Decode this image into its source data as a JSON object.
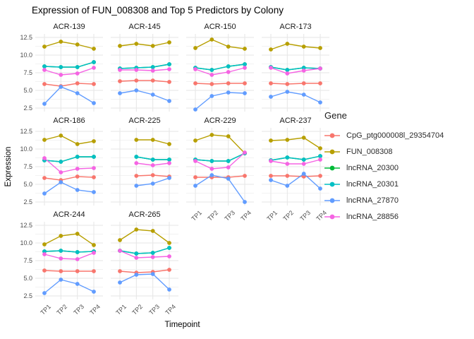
{
  "title": "Expression of FUN_008308 and Top 5 Predictors by Colony",
  "axes": {
    "x_label": "Timepoint",
    "y_label": "Expression",
    "x_ticks": [
      "TP1",
      "TP2",
      "TP3",
      "TP4"
    ],
    "y_ticks": [
      "2.5",
      "5.0",
      "7.5",
      "10.0",
      "12.5"
    ]
  },
  "legend": {
    "title": "Gene",
    "entries": [
      {
        "label": "CpG_ptg000008l_29354704",
        "color": "#F8766D"
      },
      {
        "label": "FUN_008308",
        "color": "#B79F00"
      },
      {
        "label": "lncRNA_20300",
        "color": "#00BA38"
      },
      {
        "label": "lncRNA_20301",
        "color": "#00BFC4"
      },
      {
        "label": "lncRNA_27870",
        "color": "#619CFF"
      },
      {
        "label": "lncRNA_28856",
        "color": "#F564E3"
      }
    ]
  },
  "chart_data": {
    "type": "line",
    "x": [
      "TP1",
      "TP2",
      "TP3",
      "TP4"
    ],
    "ylim": [
      2.5,
      12.5
    ],
    "y_major_ticks": [
      2.5,
      5.0,
      7.5,
      10.0,
      12.5
    ],
    "y_minor_ticks": [
      3.75,
      6.25,
      8.75,
      11.25
    ],
    "grid": "on",
    "legend_position": "right",
    "series_order": [
      "CpG_ptg000008l_29354704",
      "FUN_008308",
      "lncRNA_20300",
      "lncRNA_20301",
      "lncRNA_27870",
      "lncRNA_28856"
    ],
    "series_colors": {
      "CpG_ptg000008l_29354704": "#F8766D",
      "FUN_008308": "#B79F00",
      "lncRNA_20300": "#00BA38",
      "lncRNA_20301": "#00BFC4",
      "lncRNA_27870": "#619CFF",
      "lncRNA_28856": "#F564E3"
    },
    "facets": [
      {
        "colony": "ACR-139",
        "series": {
          "CpG_ptg000008l_29354704": [
            5.9,
            5.6,
            6.0,
            5.9
          ],
          "FUN_008308": [
            11.2,
            11.9,
            11.5,
            10.9
          ],
          "lncRNA_20300": [
            8.4,
            8.3,
            8.3,
            9.0
          ],
          "lncRNA_20301": [
            8.4,
            8.3,
            8.3,
            9.0
          ],
          "lncRNA_27870": [
            3.1,
            5.5,
            4.6,
            3.2
          ],
          "lncRNA_28856": [
            7.9,
            7.2,
            7.4,
            8.2
          ]
        }
      },
      {
        "colony": "ACR-145",
        "series": {
          "CpG_ptg000008l_29354704": [
            6.3,
            6.4,
            6.4,
            6.2
          ],
          "FUN_008308": [
            11.3,
            11.6,
            11.3,
            11.8
          ],
          "lncRNA_20300": [
            8.1,
            8.2,
            8.3,
            8.7
          ],
          "lncRNA_20301": [
            8.1,
            8.2,
            8.3,
            8.7
          ],
          "lncRNA_27870": [
            4.6,
            5.0,
            4.4,
            3.5
          ],
          "lncRNA_28856": [
            7.9,
            7.9,
            7.8,
            8.0
          ]
        }
      },
      {
        "colony": "ACR-150",
        "series": {
          "CpG_ptg000008l_29354704": [
            6.0,
            5.9,
            6.0,
            6.0
          ],
          "FUN_008308": [
            11.0,
            12.2,
            11.2,
            10.9
          ],
          "lncRNA_20300": [
            8.2,
            7.9,
            8.4,
            8.7
          ],
          "lncRNA_20301": [
            8.2,
            7.9,
            8.4,
            8.7
          ],
          "lncRNA_27870": [
            2.3,
            4.2,
            4.7,
            4.6
          ],
          "lncRNA_28856": [
            8.0,
            7.2,
            7.6,
            8.2
          ]
        }
      },
      {
        "colony": "ACR-173",
        "series": {
          "CpG_ptg000008l_29354704": [
            6.0,
            5.9,
            6.0,
            6.0
          ],
          "FUN_008308": [
            10.8,
            11.6,
            11.2,
            11.0
          ],
          "lncRNA_20300": [
            8.3,
            7.9,
            8.2,
            8.1
          ],
          "lncRNA_20301": [
            8.3,
            7.9,
            8.2,
            8.1
          ],
          "lncRNA_27870": [
            4.1,
            4.8,
            4.4,
            3.3
          ],
          "lncRNA_28856": [
            8.2,
            7.4,
            7.8,
            8.1
          ]
        }
      },
      {
        "colony": "ACR-186",
        "series": {
          "CpG_ptg000008l_29354704": [
            5.9,
            5.6,
            6.1,
            6.0
          ],
          "FUN_008308": [
            11.3,
            11.9,
            10.7,
            11.1
          ],
          "lncRNA_20300": [
            8.4,
            8.2,
            8.9,
            8.9
          ],
          "lncRNA_20301": [
            8.4,
            8.2,
            8.9,
            8.9
          ],
          "lncRNA_27870": [
            3.7,
            5.3,
            4.2,
            3.9
          ],
          "lncRNA_28856": [
            8.7,
            6.7,
            7.2,
            7.3
          ]
        }
      },
      {
        "colony": "ACR-225",
        "series": {
          "CpG_ptg000008l_29354704": [
            null,
            6.2,
            6.3,
            6.1
          ],
          "FUN_008308": [
            null,
            11.3,
            11.3,
            10.7
          ],
          "lncRNA_20300": [
            null,
            8.9,
            8.5,
            8.5
          ],
          "lncRNA_20301": [
            null,
            8.9,
            8.5,
            8.5
          ],
          "lncRNA_27870": [
            null,
            4.8,
            5.1,
            5.9
          ],
          "lncRNA_28856": [
            null,
            8.0,
            7.7,
            8.0
          ]
        }
      },
      {
        "colony": "ACR-229",
        "series": {
          "CpG_ptg000008l_29354704": [
            6.0,
            6.0,
            6.0,
            6.2
          ],
          "FUN_008308": [
            11.2,
            12.0,
            11.8,
            9.4
          ],
          "lncRNA_20300": [
            8.5,
            8.3,
            8.3,
            9.4
          ],
          "lncRNA_20301": [
            8.5,
            8.3,
            8.3,
            9.4
          ],
          "lncRNA_27870": [
            4.8,
            6.3,
            5.8,
            2.5
          ],
          "lncRNA_28856": [
            8.3,
            7.2,
            7.4,
            9.5
          ]
        }
      },
      {
        "colony": "ACR-237",
        "series": {
          "CpG_ptg000008l_29354704": [
            6.2,
            6.2,
            6.1,
            6.2
          ],
          "FUN_008308": [
            11.2,
            11.3,
            11.6,
            10.1
          ],
          "lncRNA_20300": [
            8.4,
            8.8,
            8.5,
            9.0
          ],
          "lncRNA_20301": [
            8.4,
            8.8,
            8.5,
            9.0
          ],
          "lncRNA_27870": [
            5.6,
            4.8,
            6.5,
            4.4
          ],
          "lncRNA_28856": [
            8.3,
            7.9,
            7.9,
            8.5
          ]
        }
      },
      {
        "colony": "ACR-244",
        "series": {
          "CpG_ptg000008l_29354704": [
            6.1,
            6.0,
            6.0,
            6.0
          ],
          "FUN_008308": [
            9.8,
            11.0,
            11.3,
            9.7
          ],
          "lncRNA_20300": [
            8.8,
            8.9,
            8.7,
            8.8
          ],
          "lncRNA_20301": [
            8.8,
            8.9,
            8.7,
            8.8
          ],
          "lncRNA_27870": [
            2.9,
            4.8,
            4.2,
            3.1
          ],
          "lncRNA_28856": [
            8.4,
            7.8,
            7.7,
            8.6
          ]
        }
      },
      {
        "colony": "ACR-265",
        "series": {
          "CpG_ptg000008l_29354704": [
            6.0,
            5.8,
            5.9,
            6.2
          ],
          "FUN_008308": [
            10.4,
            11.9,
            11.7,
            10.0
          ],
          "lncRNA_20300": [
            8.9,
            8.5,
            8.6,
            9.3
          ],
          "lncRNA_20301": [
            8.9,
            8.5,
            8.6,
            9.3
          ],
          "lncRNA_27870": [
            4.4,
            5.5,
            5.6,
            3.4
          ],
          "lncRNA_28856": [
            8.9,
            7.9,
            8.0,
            8.1
          ]
        }
      }
    ],
    "facets_with_x_labels": [
      "ACR-229",
      "ACR-237",
      "ACR-244",
      "ACR-265"
    ]
  }
}
